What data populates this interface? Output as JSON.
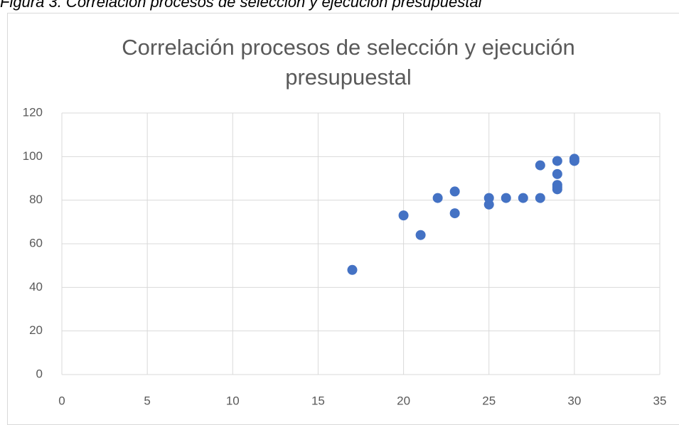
{
  "caption": "Figura 3. Correlación  procesos de  selección y  ejecución  presupuestal",
  "chart_data": {
    "type": "scatter",
    "title": "Correlación procesos  de selección  y  ejecución presupuestal",
    "color": "#4472c4",
    "x": [
      17,
      20,
      21,
      22,
      23,
      23,
      25,
      25,
      26,
      27,
      28,
      28,
      29,
      29,
      29,
      29,
      29,
      30,
      30
    ],
    "values": [
      48,
      73,
      64,
      81,
      84,
      74,
      81,
      78,
      81,
      81,
      81,
      96,
      98,
      92,
      87,
      86,
      85,
      99,
      98
    ],
    "xlim": [
      0,
      35
    ],
    "xticks": [
      0,
      5,
      10,
      15,
      20,
      25,
      30,
      35
    ],
    "ylim": [
      0,
      120
    ],
    "yticks": [
      0,
      20,
      40,
      60,
      80,
      100,
      120
    ],
    "grid": true
  }
}
